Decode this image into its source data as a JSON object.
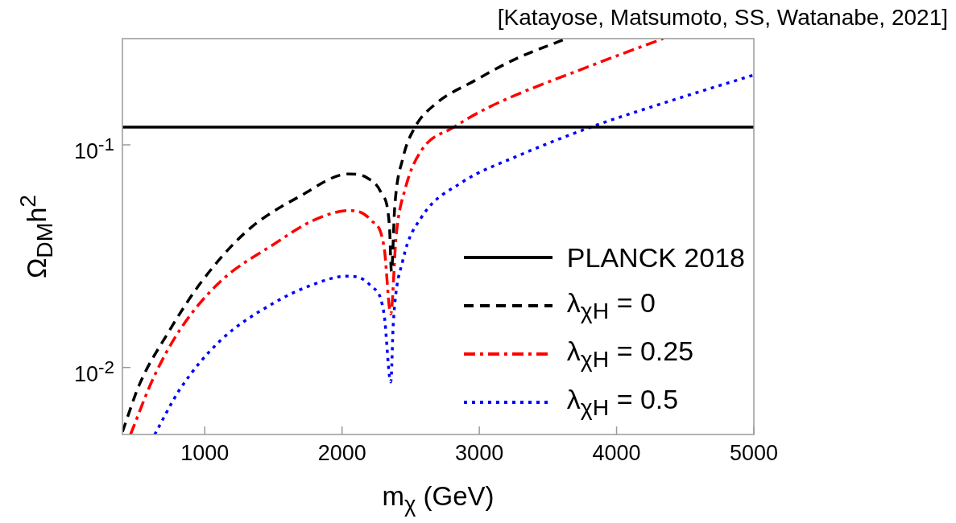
{
  "chart_data": {
    "type": "line",
    "xlabel": "m$_{χ}$ (GeV)",
    "ylabel": "Ω$_{DM}$h$^{2}$",
    "annotations": [
      "[Katayose, Matsumoto, SS, Watanabe, 2021]"
    ],
    "xlim": [
      400,
      5000
    ],
    "xticks": [
      1000,
      2000,
      3000,
      4000,
      5000
    ],
    "ylim": [
      0.005,
      0.3
    ],
    "yticks": [
      {
        "value": 0.01,
        "label": "10$^{-2}$"
      },
      {
        "value": 0.1,
        "label": "10$^{-1}$"
      }
    ],
    "log": "y",
    "legend": "bottom right",
    "marker": "none",
    "ref_lines": [
      {
        "axis": "y",
        "value": 0.12,
        "label": "PLANCK 2018",
        "color": "#000000",
        "line_style": "solid"
      }
    ],
    "series": [
      {
        "name": "λ$_{χH}$ = 0",
        "color": "#000000",
        "line_style": "dashed",
        "x": [
          400,
          527,
          723,
          977,
          1309,
          1698,
          2050,
          2189,
          2286,
          2345,
          2360,
          2384,
          2443,
          2531,
          2677,
          2971,
          3264,
          3633
        ],
        "values": [
          0.00514,
          0.00847,
          0.014,
          0.0243,
          0.0411,
          0.059,
          0.074,
          0.0707,
          0.0607,
          0.0435,
          0.027,
          0.0528,
          0.087,
          0.12,
          0.152,
          0.195,
          0.243,
          0.3
        ]
      },
      {
        "name": "λ$_{χH}$ = 0.25",
        "color": "#ff0000",
        "line_style": "dashdot",
        "x": [
          459,
          625,
          820,
          1113,
          1504,
          1798,
          2052,
          2208,
          2306,
          2355,
          2394,
          2462,
          2579,
          2814,
          3069,
          3811,
          4339
        ],
        "values": [
          0.005,
          0.00895,
          0.0148,
          0.0243,
          0.0358,
          0.046,
          0.0507,
          0.046,
          0.0348,
          0.0174,
          0.0389,
          0.0641,
          0.0946,
          0.12,
          0.1475,
          0.2265,
          0.3
        ]
      },
      {
        "name": "λ$_{χH}$ = 0.5",
        "color": "#0000ff",
        "line_style": "dotted",
        "x": [
          635,
          820,
          1113,
          1504,
          1798,
          2032,
          2208,
          2306,
          2355,
          2374,
          2443,
          2579,
          2873,
          3264,
          3811,
          4398,
          5000
        ],
        "values": [
          0.005,
          0.008,
          0.0132,
          0.0195,
          0.0237,
          0.0257,
          0.0233,
          0.0174,
          0.0086,
          0.016,
          0.0303,
          0.0473,
          0.0678,
          0.0883,
          0.12,
          0.158,
          0.206
        ]
      }
    ]
  }
}
